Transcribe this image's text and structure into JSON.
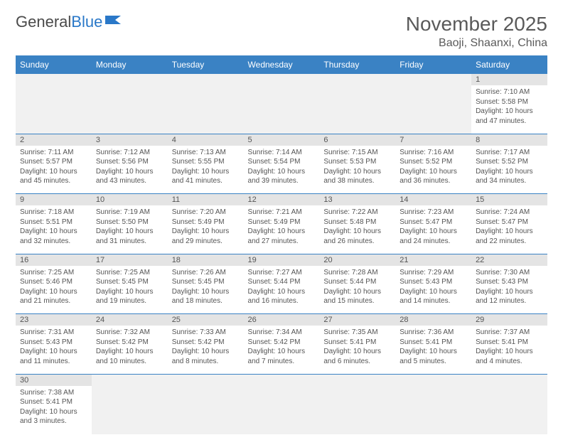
{
  "logo": {
    "part1": "General",
    "part2": "Blue"
  },
  "title": "November 2025",
  "location": "Baoji, Shaanxi, China",
  "colors": {
    "header_blue": "#3a82c4",
    "daynum_bg": "#e4e4e4",
    "empty_bg": "#f1f1f1",
    "text": "#555555"
  },
  "days_of_week": [
    "Sunday",
    "Monday",
    "Tuesday",
    "Wednesday",
    "Thursday",
    "Friday",
    "Saturday"
  ],
  "weeks": [
    [
      null,
      null,
      null,
      null,
      null,
      null,
      {
        "n": "1",
        "sr": "Sunrise: 7:10 AM",
        "ss": "Sunset: 5:58 PM",
        "dl1": "Daylight: 10 hours",
        "dl2": "and 47 minutes."
      }
    ],
    [
      {
        "n": "2",
        "sr": "Sunrise: 7:11 AM",
        "ss": "Sunset: 5:57 PM",
        "dl1": "Daylight: 10 hours",
        "dl2": "and 45 minutes."
      },
      {
        "n": "3",
        "sr": "Sunrise: 7:12 AM",
        "ss": "Sunset: 5:56 PM",
        "dl1": "Daylight: 10 hours",
        "dl2": "and 43 minutes."
      },
      {
        "n": "4",
        "sr": "Sunrise: 7:13 AM",
        "ss": "Sunset: 5:55 PM",
        "dl1": "Daylight: 10 hours",
        "dl2": "and 41 minutes."
      },
      {
        "n": "5",
        "sr": "Sunrise: 7:14 AM",
        "ss": "Sunset: 5:54 PM",
        "dl1": "Daylight: 10 hours",
        "dl2": "and 39 minutes."
      },
      {
        "n": "6",
        "sr": "Sunrise: 7:15 AM",
        "ss": "Sunset: 5:53 PM",
        "dl1": "Daylight: 10 hours",
        "dl2": "and 38 minutes."
      },
      {
        "n": "7",
        "sr": "Sunrise: 7:16 AM",
        "ss": "Sunset: 5:52 PM",
        "dl1": "Daylight: 10 hours",
        "dl2": "and 36 minutes."
      },
      {
        "n": "8",
        "sr": "Sunrise: 7:17 AM",
        "ss": "Sunset: 5:52 PM",
        "dl1": "Daylight: 10 hours",
        "dl2": "and 34 minutes."
      }
    ],
    [
      {
        "n": "9",
        "sr": "Sunrise: 7:18 AM",
        "ss": "Sunset: 5:51 PM",
        "dl1": "Daylight: 10 hours",
        "dl2": "and 32 minutes."
      },
      {
        "n": "10",
        "sr": "Sunrise: 7:19 AM",
        "ss": "Sunset: 5:50 PM",
        "dl1": "Daylight: 10 hours",
        "dl2": "and 31 minutes."
      },
      {
        "n": "11",
        "sr": "Sunrise: 7:20 AM",
        "ss": "Sunset: 5:49 PM",
        "dl1": "Daylight: 10 hours",
        "dl2": "and 29 minutes."
      },
      {
        "n": "12",
        "sr": "Sunrise: 7:21 AM",
        "ss": "Sunset: 5:49 PM",
        "dl1": "Daylight: 10 hours",
        "dl2": "and 27 minutes."
      },
      {
        "n": "13",
        "sr": "Sunrise: 7:22 AM",
        "ss": "Sunset: 5:48 PM",
        "dl1": "Daylight: 10 hours",
        "dl2": "and 26 minutes."
      },
      {
        "n": "14",
        "sr": "Sunrise: 7:23 AM",
        "ss": "Sunset: 5:47 PM",
        "dl1": "Daylight: 10 hours",
        "dl2": "and 24 minutes."
      },
      {
        "n": "15",
        "sr": "Sunrise: 7:24 AM",
        "ss": "Sunset: 5:47 PM",
        "dl1": "Daylight: 10 hours",
        "dl2": "and 22 minutes."
      }
    ],
    [
      {
        "n": "16",
        "sr": "Sunrise: 7:25 AM",
        "ss": "Sunset: 5:46 PM",
        "dl1": "Daylight: 10 hours",
        "dl2": "and 21 minutes."
      },
      {
        "n": "17",
        "sr": "Sunrise: 7:25 AM",
        "ss": "Sunset: 5:45 PM",
        "dl1": "Daylight: 10 hours",
        "dl2": "and 19 minutes."
      },
      {
        "n": "18",
        "sr": "Sunrise: 7:26 AM",
        "ss": "Sunset: 5:45 PM",
        "dl1": "Daylight: 10 hours",
        "dl2": "and 18 minutes."
      },
      {
        "n": "19",
        "sr": "Sunrise: 7:27 AM",
        "ss": "Sunset: 5:44 PM",
        "dl1": "Daylight: 10 hours",
        "dl2": "and 16 minutes."
      },
      {
        "n": "20",
        "sr": "Sunrise: 7:28 AM",
        "ss": "Sunset: 5:44 PM",
        "dl1": "Daylight: 10 hours",
        "dl2": "and 15 minutes."
      },
      {
        "n": "21",
        "sr": "Sunrise: 7:29 AM",
        "ss": "Sunset: 5:43 PM",
        "dl1": "Daylight: 10 hours",
        "dl2": "and 14 minutes."
      },
      {
        "n": "22",
        "sr": "Sunrise: 7:30 AM",
        "ss": "Sunset: 5:43 PM",
        "dl1": "Daylight: 10 hours",
        "dl2": "and 12 minutes."
      }
    ],
    [
      {
        "n": "23",
        "sr": "Sunrise: 7:31 AM",
        "ss": "Sunset: 5:43 PM",
        "dl1": "Daylight: 10 hours",
        "dl2": "and 11 minutes."
      },
      {
        "n": "24",
        "sr": "Sunrise: 7:32 AM",
        "ss": "Sunset: 5:42 PM",
        "dl1": "Daylight: 10 hours",
        "dl2": "and 10 minutes."
      },
      {
        "n": "25",
        "sr": "Sunrise: 7:33 AM",
        "ss": "Sunset: 5:42 PM",
        "dl1": "Daylight: 10 hours",
        "dl2": "and 8 minutes."
      },
      {
        "n": "26",
        "sr": "Sunrise: 7:34 AM",
        "ss": "Sunset: 5:42 PM",
        "dl1": "Daylight: 10 hours",
        "dl2": "and 7 minutes."
      },
      {
        "n": "27",
        "sr": "Sunrise: 7:35 AM",
        "ss": "Sunset: 5:41 PM",
        "dl1": "Daylight: 10 hours",
        "dl2": "and 6 minutes."
      },
      {
        "n": "28",
        "sr": "Sunrise: 7:36 AM",
        "ss": "Sunset: 5:41 PM",
        "dl1": "Daylight: 10 hours",
        "dl2": "and 5 minutes."
      },
      {
        "n": "29",
        "sr": "Sunrise: 7:37 AM",
        "ss": "Sunset: 5:41 PM",
        "dl1": "Daylight: 10 hours",
        "dl2": "and 4 minutes."
      }
    ],
    [
      {
        "n": "30",
        "sr": "Sunrise: 7:38 AM",
        "ss": "Sunset: 5:41 PM",
        "dl1": "Daylight: 10 hours",
        "dl2": "and 3 minutes."
      },
      null,
      null,
      null,
      null,
      null,
      null
    ]
  ]
}
